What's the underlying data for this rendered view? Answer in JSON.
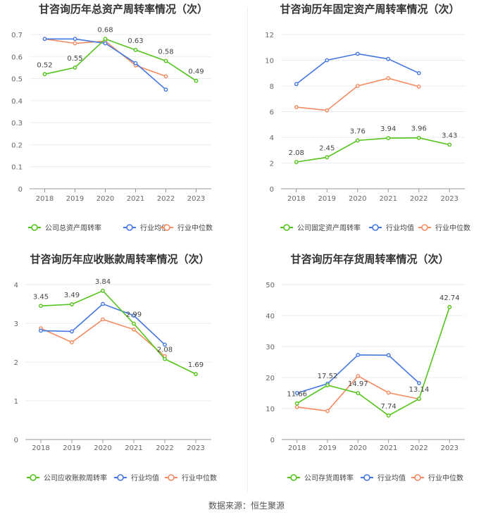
{
  "source": "数据来源：恒生聚源",
  "legend_labels": {
    "industry_avg": "行业均值",
    "industry_median": "行业中位数"
  },
  "colors": {
    "company": "#52c41a",
    "industry_avg": "#4477e0",
    "industry_median": "#f48a60"
  },
  "chart_data": [
    {
      "type": "line",
      "title": "甘咨询历年总资产周转率情况（次）",
      "categories": [
        "2018",
        "2019",
        "2020",
        "2021",
        "2022",
        "2023"
      ],
      "ylim": [
        0,
        0.7
      ],
      "yticks": [
        0,
        0.1,
        0.2,
        0.3,
        0.4,
        0.5,
        0.6,
        0.7
      ],
      "ytick_labels": [
        "0",
        "0.1",
        "0.2",
        "0.3",
        "0.4",
        "0.5",
        "0.6",
        "0.7"
      ],
      "series": [
        {
          "name": "公司总资产周转率",
          "role": "company",
          "values": [
            0.52,
            0.55,
            0.68,
            0.63,
            0.58,
            0.49
          ],
          "labels": [
            "0.52",
            "0.55",
            "0.68",
            "0.63",
            "0.58",
            "0.49"
          ]
        },
        {
          "name": "行业均值",
          "role": "industry_avg",
          "values": [
            0.68,
            0.68,
            0.66,
            0.57,
            0.45,
            null
          ]
        },
        {
          "name": "行业中位数",
          "role": "industry_median",
          "values": [
            0.68,
            0.66,
            0.67,
            0.56,
            0.51,
            null
          ]
        }
      ]
    },
    {
      "type": "line",
      "title": "甘咨询历年固定资产周转率情况（次）",
      "categories": [
        "2018",
        "2019",
        "2020",
        "2021",
        "2022",
        "2023"
      ],
      "ylim": [
        0,
        12
      ],
      "yticks": [
        0,
        2,
        4,
        6,
        8,
        10,
        12
      ],
      "ytick_labels": [
        "0",
        "2",
        "4",
        "6",
        "8",
        "10",
        "12"
      ],
      "series": [
        {
          "name": "公司固定资产周转率",
          "role": "company",
          "values": [
            2.08,
            2.45,
            3.76,
            3.94,
            3.96,
            3.43
          ],
          "labels": [
            "2.08",
            "2.45",
            "3.76",
            "3.94",
            "3.96",
            "3.43"
          ]
        },
        {
          "name": "行业均值",
          "role": "industry_avg",
          "values": [
            8.15,
            10.0,
            10.5,
            10.1,
            9.0,
            null
          ]
        },
        {
          "name": "行业中位数",
          "role": "industry_median",
          "values": [
            6.35,
            6.1,
            8.0,
            8.6,
            7.95,
            null
          ]
        }
      ]
    },
    {
      "type": "line",
      "title": "甘咨询历年应收账款周转率情况（次）",
      "categories": [
        "2018",
        "2019",
        "2020",
        "2021",
        "2022",
        "2023"
      ],
      "ylim": [
        0,
        4
      ],
      "yticks": [
        0,
        1,
        2,
        3,
        4
      ],
      "ytick_labels": [
        "0",
        "1",
        "2",
        "3",
        "4"
      ],
      "series": [
        {
          "name": "公司应收账款周转率",
          "role": "company",
          "values": [
            3.45,
            3.49,
            3.84,
            2.99,
            2.08,
            1.69
          ],
          "labels": [
            "3.45",
            "3.49",
            "3.84",
            "2.99",
            "2.08",
            "1.69"
          ]
        },
        {
          "name": "行业均值",
          "role": "industry_avg",
          "values": [
            2.81,
            2.79,
            3.5,
            3.2,
            2.45,
            null
          ]
        },
        {
          "name": "行业中位数",
          "role": "industry_median",
          "values": [
            2.87,
            2.51,
            3.1,
            2.84,
            2.15,
            null
          ]
        }
      ]
    },
    {
      "type": "line",
      "title": "甘咨询历年存货周转率情况（次）",
      "categories": [
        "2018",
        "2019",
        "2020",
        "2021",
        "2022",
        "2023"
      ],
      "ylim": [
        0,
        50
      ],
      "yticks": [
        0,
        10,
        20,
        30,
        40,
        50
      ],
      "ytick_labels": [
        "0",
        "10",
        "20",
        "30",
        "40",
        "50"
      ],
      "series": [
        {
          "name": "公司存货周转率",
          "role": "company",
          "values": [
            11.66,
            17.52,
            14.97,
            7.74,
            13.14,
            42.74
          ],
          "labels": [
            "11.66",
            "17.52",
            "14.97",
            "7.74",
            "13.14",
            "42.74"
          ]
        },
        {
          "name": "行业均值",
          "role": "industry_avg",
          "values": [
            15.0,
            18.0,
            27.3,
            27.2,
            18.2,
            null
          ]
        },
        {
          "name": "行业中位数",
          "role": "industry_median",
          "values": [
            10.5,
            9.2,
            20.5,
            15.1,
            13.1,
            null
          ]
        }
      ]
    }
  ]
}
